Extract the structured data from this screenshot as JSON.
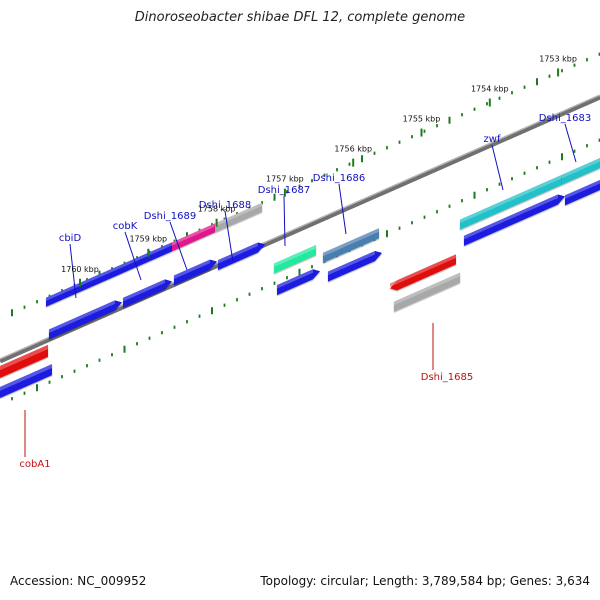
{
  "header": {
    "title": "Dinoroseobacter shibae DFL 12, complete genome"
  },
  "footer": {
    "accession": "Accession: NC_009952",
    "topology": "Topology: circular; Length: 3,789,584 bp; Genes: 3,634"
  },
  "ticks": [
    {
      "label": "1753 kbp",
      "kbp": 1753
    },
    {
      "label": "1754 kbp",
      "kbp": 1754
    },
    {
      "label": "1755 kbp",
      "kbp": 1755
    },
    {
      "label": "1756 kbp",
      "kbp": 1756
    },
    {
      "label": "1757 kbp",
      "kbp": 1757
    },
    {
      "label": "1758 kbp",
      "kbp": 1758
    },
    {
      "label": "1759 kbp",
      "kbp": 1759
    },
    {
      "label": "1760 kbp",
      "kbp": 1760
    }
  ],
  "genes": [
    {
      "name": "cbiD",
      "strand": "+",
      "color": "#1a1adf"
    },
    {
      "name": "cobK",
      "strand": "+",
      "color": "#1a1adf"
    },
    {
      "name": "Dshi_1689",
      "strand": "+",
      "color": "#e0188c"
    },
    {
      "name": "Dshi_1688",
      "strand": "+",
      "color": "#a8a8a8"
    },
    {
      "name": "Dshi_1687",
      "strand": "+",
      "color": "#20e8a0"
    },
    {
      "name": "Dshi_1686",
      "strand": "+",
      "color": "#4a7eb0"
    },
    {
      "name": "zwf",
      "strand": "+",
      "color": "#20c0c8"
    },
    {
      "name": "Dshi_1683",
      "strand": "+",
      "color": "#20c0c8"
    },
    {
      "name": "Dshi_1685",
      "strand": "-",
      "color": "#e01010"
    },
    {
      "name": "cobA1",
      "strand": "-",
      "color": "#e01010"
    }
  ],
  "colors": {
    "cds": "#1a1adf",
    "forward_label": "#1010c0",
    "reverse_label": "#c01010",
    "tick": "#1e7a1e",
    "backbone": "#707070",
    "pseudo_gene": "#a8a8a8"
  }
}
